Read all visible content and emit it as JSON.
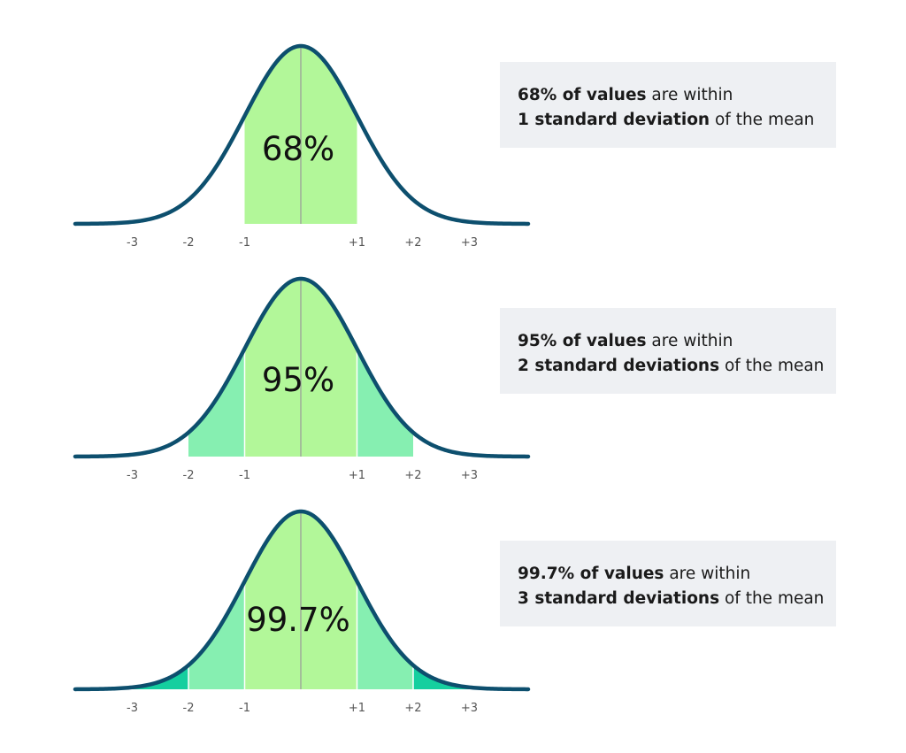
{
  "colors": {
    "curve": "#0d4f6e",
    "band1": "#b2f799",
    "band2": "#86efb1",
    "band3": "#15cf9f",
    "mean_line": "#9a9a9a",
    "band_divider": "#ffffff",
    "callout_bg": "#eef0f3"
  },
  "chart_data": [
    {
      "type": "area",
      "distribution": "normal",
      "shaded_sd": 1,
      "x_ticks": [
        "-3",
        "-2",
        "-1",
        "+1",
        "+2",
        "+3"
      ],
      "center_label": "68%",
      "callout": {
        "bold1": "68% of values",
        "text1": " are within",
        "bold2": "1 standard deviation",
        "text2": " of the mean"
      }
    },
    {
      "type": "area",
      "distribution": "normal",
      "shaded_sd": 2,
      "x_ticks": [
        "-3",
        "-2",
        "-1",
        "+1",
        "+2",
        "+3"
      ],
      "center_label": "95%",
      "callout": {
        "bold1": "95% of values",
        "text1": " are within",
        "bold2": "2 standard deviations",
        "text2": " of the mean"
      }
    },
    {
      "type": "area",
      "distribution": "normal",
      "shaded_sd": 3,
      "x_ticks": [
        "-3",
        "-2",
        "-1",
        "+1",
        "+2",
        "+3"
      ],
      "center_label": "99.7%",
      "callout": {
        "bold1": "99.7% of values",
        "text1": " are within",
        "bold2": "3 standard deviations",
        "text2": " of the mean"
      }
    }
  ]
}
